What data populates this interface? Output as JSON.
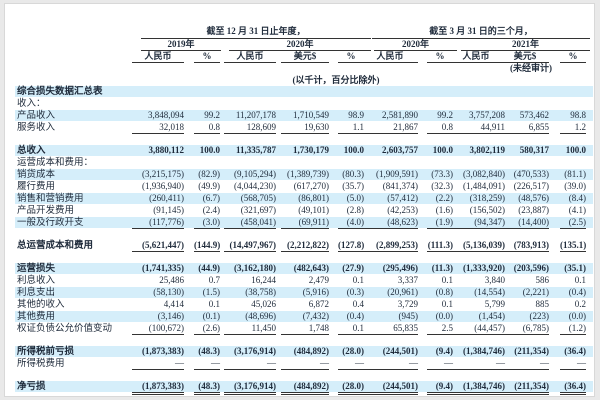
{
  "header": {
    "annual_group": "截至 12 月 31 日止年度，",
    "quarter_group": "截至 3 月 31 日的三个月，",
    "year_2019": "2019年",
    "year_2020": "2020年",
    "q_2020": "2020年",
    "q_2021": "2021年",
    "columns": [
      "人民币",
      "%",
      "人民币",
      "美元$",
      "%",
      "人民币",
      "%",
      "人民币",
      "美元$",
      "%"
    ],
    "unaudited": "(未经审计)",
    "unit_note": "(以千计，百分比除外)"
  },
  "rows": [
    {
      "label": "综合损失数据汇总表",
      "bold": true,
      "band": true,
      "values": []
    },
    {
      "label": "收入：",
      "values": []
    },
    {
      "label": "产品收入",
      "band": true,
      "values": [
        "3,848,094",
        "99.2",
        "11,207,178",
        "1,710,549",
        "98.9",
        "2,581,890",
        "99.2",
        "3,757,208",
        "573,462",
        "98.8"
      ]
    },
    {
      "label": "服务收入",
      "underline": true,
      "values": [
        "32,018",
        "0.8",
        "128,609",
        "19,630",
        "1.1",
        "21,867",
        "0.8",
        "44,911",
        "6,855",
        "1.2"
      ]
    },
    {
      "label": "总收入",
      "bold": true,
      "band": true,
      "gap": true,
      "values": [
        "3,880,112",
        "100.0",
        "11,335,787",
        "1,730,179",
        "100.0",
        "2,603,757",
        "100.0",
        "3,802,119",
        "580,317",
        "100.0"
      ]
    },
    {
      "label": "运营成本和费用：",
      "values": []
    },
    {
      "label": "销货成本",
      "band": true,
      "values": [
        "(3,215,175)",
        "(82.9)",
        "(9,105,294)",
        "(1,389,739)",
        "(80.3)",
        "(1,909,591)",
        "(73.3)",
        "(3,082,840)",
        "(470,533)",
        "(81.1)"
      ]
    },
    {
      "label": "履行费用",
      "values": [
        "(1,936,940)",
        "(49.9)",
        "(4,044,230)",
        "(617,270)",
        "(35.7)",
        "(841,374)",
        "(32.3)",
        "(1,484,091)",
        "(226,517)",
        "(39.0)"
      ]
    },
    {
      "label": "销售和营销费用",
      "band": true,
      "values": [
        "(260,411)",
        "(6.7)",
        "(568,705)",
        "(86,801)",
        "(5.0)",
        "(57,412)",
        "(2.2)",
        "(318,259)",
        "(48,576)",
        "(8.4)"
      ]
    },
    {
      "label": "产品开发费用",
      "values": [
        "(91,145)",
        "(2.4)",
        "(321,697)",
        "(49,101)",
        "(2.8)",
        "(42,253)",
        "(1.6)",
        "(156,502)",
        "(23,887)",
        "(4.1)"
      ]
    },
    {
      "label": "一般及行政开支",
      "band": true,
      "underline": true,
      "values": [
        "(117,776)",
        "(3.0)",
        "(458,041)",
        "(69,911)",
        "(4.0)",
        "(48,623)",
        "(1.9)",
        "(94,347)",
        "(14,400)",
        "(2.5)"
      ]
    },
    {
      "label": "总运营成本和费用",
      "bold": true,
      "gap": true,
      "underline": true,
      "values": [
        "(5,621,447)",
        "(144.9)",
        "(14,497,967)",
        "(2,212,822)",
        "(127.8)",
        "(2,899,253)",
        "(111.3)",
        "(5,136,039)",
        "(783,913)",
        "(135.1)"
      ]
    },
    {
      "label": "运营损失",
      "bold": true,
      "band": true,
      "gap": true,
      "values": [
        "(1,741,335)",
        "(44.9)",
        "(3,162,180)",
        "(482,643)",
        "(27.9)",
        "(295,496)",
        "(11.3)",
        "(1,333,920)",
        "(203,596)",
        "(35.1)"
      ]
    },
    {
      "label": "利息收入",
      "values": [
        "25,486",
        "0.7",
        "16,244",
        "2,479",
        "0.1",
        "3,337",
        "0.1",
        "3,840",
        "586",
        "0.1"
      ]
    },
    {
      "label": "利息支出",
      "band": true,
      "values": [
        "(58,130)",
        "(1.5)",
        "(38,758)",
        "(5,916)",
        "(0.3)",
        "(20,961)",
        "(0.8)",
        "(14,554)",
        "(2,221)",
        "(0.4)"
      ]
    },
    {
      "label": "其他的收入",
      "values": [
        "4,414",
        "0.1",
        "45,026",
        "6,872",
        "0.4",
        "3,729",
        "0.1",
        "5,799",
        "885",
        "0.2"
      ]
    },
    {
      "label": "其他费用",
      "band": true,
      "values": [
        "(3,146)",
        "(0.1)",
        "(48,696)",
        "(7,432)",
        "(0.4)",
        "(945)",
        "(0.0)",
        "(1,454)",
        "(223)",
        "(0.0)"
      ]
    },
    {
      "label": "权证负债公允价值变动",
      "underline": true,
      "values": [
        "(100,672)",
        "(2.6)",
        "11,450",
        "1,748",
        "0.1",
        "65,835",
        "2.5",
        "(44,457)",
        "(6,785)",
        "(1.2)"
      ]
    },
    {
      "label": "所得税前亏损",
      "bold": true,
      "band": true,
      "gap": true,
      "values": [
        "(1,873,383)",
        "(48.3)",
        "(3,176,914)",
        "(484,892)",
        "(28.0)",
        "(244,501)",
        "(9.4)",
        "(1,384,746)",
        "(211,354)",
        "(36.4)"
      ]
    },
    {
      "label": "所得税费用",
      "underline": true,
      "values": [
        "—",
        "—",
        "—",
        "—",
        "—",
        "—",
        "—",
        "—",
        "—",
        "—"
      ]
    },
    {
      "label": "净亏损",
      "bold": true,
      "band": true,
      "gap": true,
      "double": true,
      "values": [
        "(1,873,383)",
        "(48.3)",
        "(3,176,914)",
        "(484,892)",
        "(28.0)",
        "(244,501)",
        "(9.4)",
        "(1,384,746)",
        "(211,354)",
        "(36.4)"
      ]
    }
  ],
  "colors": {
    "band": "#d5eefa",
    "text": "#1e2a3a"
  }
}
